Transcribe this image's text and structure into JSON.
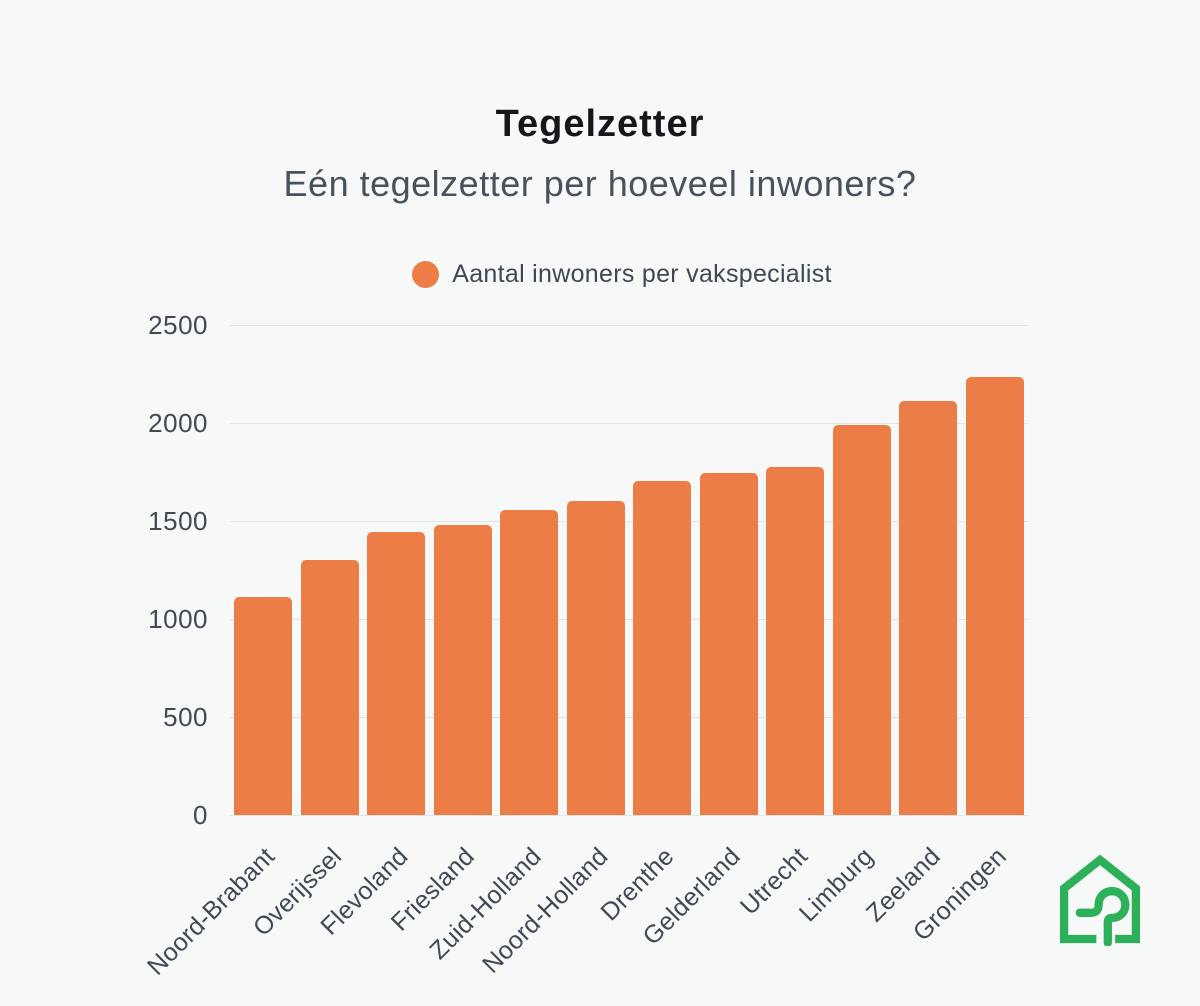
{
  "page": {
    "background": "#F7F8F8"
  },
  "header": {
    "title": "Tegelzetter",
    "subtitle": "Eén tegelzetter per hoeveel inwoners?"
  },
  "legend": {
    "label": "Aantal inwoners per vakspecialist",
    "swatch_color": "#ED7D46"
  },
  "chart_data": {
    "type": "bar",
    "title": "Tegelzetter",
    "subtitle": "Eén tegelzetter per hoeveel inwoners?",
    "legend_entries": [
      "Aantal inwoners per vakspecialist"
    ],
    "legend_position": "top",
    "categories": [
      "Noord-Brabant",
      "Overijssel",
      "Flevoland",
      "Friesland",
      "Zuid-Holland",
      "Noord-Holland",
      "Drenthe",
      "Gelderland",
      "Utrecht",
      "Limburg",
      "Zeeland",
      "Groningen"
    ],
    "values": [
      1110,
      1300,
      1445,
      1480,
      1555,
      1600,
      1705,
      1745,
      1775,
      1990,
      2110,
      2235
    ],
    "xlabel": "",
    "ylabel": "",
    "ylim": [
      0,
      2500
    ],
    "yticks": [
      0,
      500,
      1000,
      1500,
      2000,
      2500
    ],
    "grid": true,
    "bar_color": "#ED7D46",
    "grid_color": "#E3E5E5",
    "tick_label_color": "#3F4A54"
  },
  "logo": {
    "name": "house-logo",
    "color": "#2CB05A"
  }
}
